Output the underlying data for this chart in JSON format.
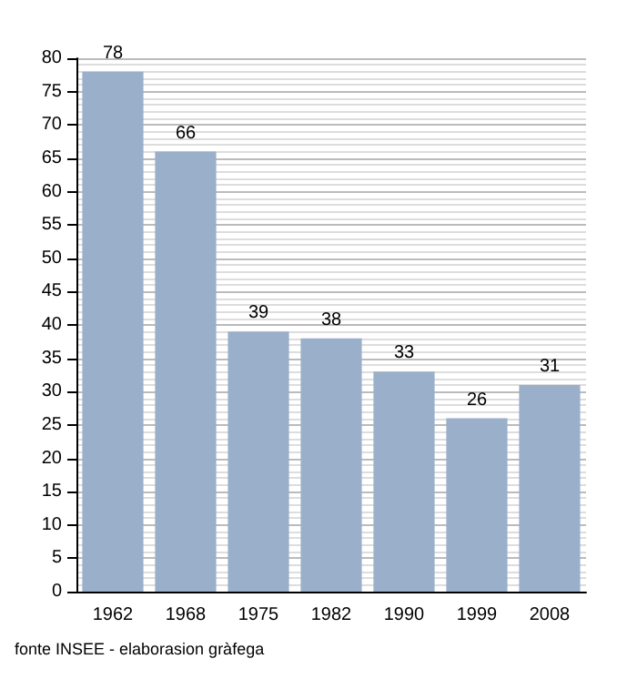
{
  "chart_data": {
    "type": "bar",
    "categories": [
      "1962",
      "1968",
      "1975",
      "1982",
      "1990",
      "1999",
      "2008"
    ],
    "values": [
      78,
      66,
      39,
      38,
      33,
      26,
      31
    ],
    "color": "#9ab0ca",
    "data_labels": true,
    "ylim": [
      0,
      80
    ],
    "yticks": [
      0,
      5,
      10,
      15,
      20,
      25,
      30,
      35,
      40,
      45,
      50,
      55,
      60,
      65,
      70,
      75,
      80
    ],
    "grid": "y",
    "annotations": [
      "fonte INSEE - elaborasion gràfega"
    ]
  }
}
